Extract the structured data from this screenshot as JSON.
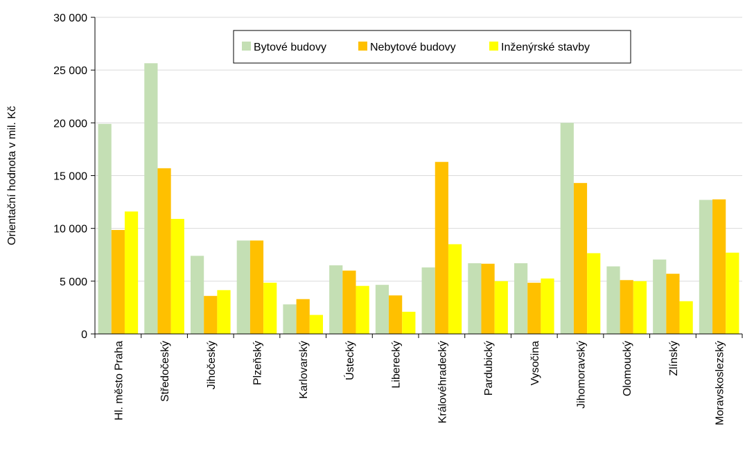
{
  "chart_data": {
    "type": "bar",
    "ylabel": "Orientační hodnota v mil. Kč",
    "xlabel": "",
    "ylim": [
      0,
      30000
    ],
    "yticks": [
      0,
      5000,
      10000,
      15000,
      20000,
      25000,
      30000
    ],
    "ytick_labels": [
      "0",
      "5 000",
      "10 000",
      "15 000",
      "20 000",
      "25 000",
      "30 000"
    ],
    "grid": true,
    "legend_position": "top-center",
    "categories": [
      "Hl. město Praha",
      "Středočeský",
      "Jihočeský",
      "Plzeňský",
      "Karlovarský",
      "Ústecký",
      "Liberecký",
      "Královéhradecký",
      "Pardubický",
      "Vysočina",
      "Jihomoravský",
      "Olomoucký",
      "Zlínský",
      "Moravskoslezský"
    ],
    "series": [
      {
        "name": "Bytové budovy",
        "color": "#c4dfb4",
        "values": [
          19900,
          25650,
          7400,
          8850,
          2800,
          6500,
          4650,
          6300,
          6700,
          6700,
          20000,
          6400,
          7050,
          12700
        ]
      },
      {
        "name": "Nebytové budovy",
        "color": "#ffc000",
        "values": [
          9850,
          15700,
          3600,
          8850,
          3300,
          6000,
          3650,
          16300,
          6650,
          4850,
          14300,
          5100,
          5700,
          12750
        ]
      },
      {
        "name": "Inženýrské stavby",
        "color": "#ffff00",
        "values": [
          11600,
          10900,
          4150,
          4850,
          1800,
          4550,
          2100,
          8500,
          5000,
          5250,
          7650,
          5000,
          3100,
          7700
        ]
      }
    ]
  }
}
